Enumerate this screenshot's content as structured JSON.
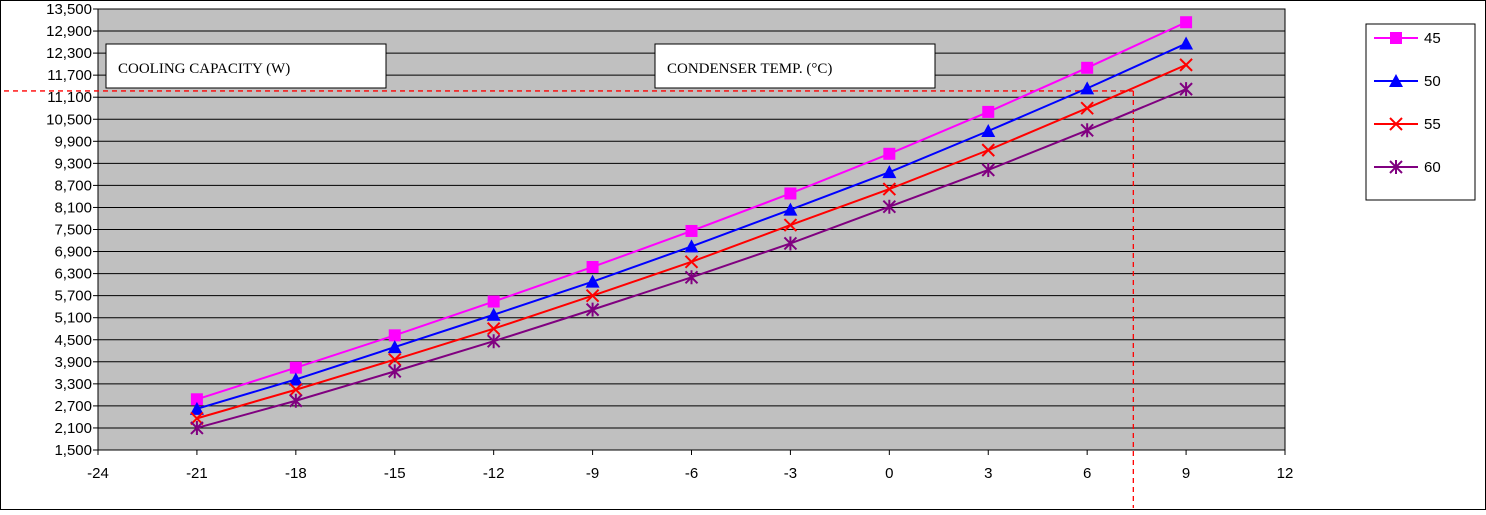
{
  "chart_data": {
    "type": "line",
    "title": "",
    "xlabel": "",
    "ylabel": "",
    "x": [
      -21,
      -18,
      -15,
      -12,
      -9,
      -6,
      -3,
      0,
      3,
      6,
      9
    ],
    "xlim": [
      -24,
      12
    ],
    "ylim": [
      1500,
      13500
    ],
    "xticks": [
      "-24",
      "-21",
      "-18",
      "-15",
      "-12",
      "-9",
      "-6",
      "-3",
      "0",
      "3",
      "6",
      "9",
      "12"
    ],
    "yticks": [
      "1,500",
      "2,100",
      "2,700",
      "3,300",
      "3,900",
      "4,500",
      "5,100",
      "5,700",
      "6,300",
      "6,900",
      "7,500",
      "8,100",
      "8,700",
      "9,300",
      "9,900",
      "10,500",
      "11,100",
      "11,700",
      "12,300",
      "12,900",
      "13,500"
    ],
    "grid": true,
    "legend_position": "right",
    "series": [
      {
        "name": "45",
        "color": "#ff00ff",
        "marker": "square",
        "values": [
          2880,
          3740,
          4620,
          5540,
          6480,
          7460,
          8480,
          9560,
          10700,
          11900,
          13140
        ]
      },
      {
        "name": "50",
        "color": "#0000ff",
        "marker": "triangle",
        "values": [
          2620,
          3420,
          4300,
          5180,
          6080,
          7040,
          8040,
          9060,
          10180,
          11340,
          12560
        ]
      },
      {
        "name": "55",
        "color": "#ff0000",
        "marker": "x",
        "values": [
          2360,
          3140,
          3960,
          4800,
          5700,
          6620,
          7620,
          8600,
          9660,
          10800,
          11980
        ]
      },
      {
        "name": "60",
        "color": "#800080",
        "marker": "star",
        "values": [
          2100,
          2840,
          3640,
          4460,
          5320,
          6200,
          7120,
          8120,
          9120,
          10200,
          11320
        ]
      }
    ],
    "annotations": [
      {
        "name": "cooling-capacity-label",
        "text": "COOLING CAPACITY (W)"
      },
      {
        "name": "condenser-temp-label",
        "text": "CONDENSER TEMP. (°C)"
      }
    ],
    "reference_lines": {
      "x": 7.4,
      "y": 11270,
      "color": "#ff0000"
    },
    "colors": {
      "plot_background": "#c0c0c0",
      "grid": "#000000"
    }
  }
}
